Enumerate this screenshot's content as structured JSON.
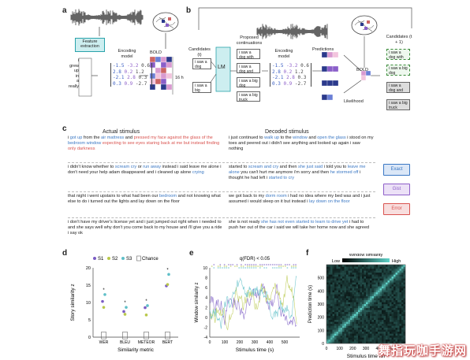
{
  "panels": {
    "a": "a",
    "b": "b",
    "c": "c",
    "d": "d",
    "e": "e",
    "f": "f"
  },
  "panel_a": {
    "feature_box": "Feature extraction",
    "words": [
      "i",
      "grew",
      "up",
      "in",
      "a",
      "really"
    ],
    "encoding_label": "Encoding model",
    "bold_label": "BOLD",
    "hours": "16 h",
    "matrix_rows": [
      [
        "-1.5",
        "-3.2",
        "0.6"
      ],
      [
        "2.8",
        "0.2",
        "1.2"
      ],
      [
        "-2.1",
        "2.8",
        "0.3"
      ],
      [
        "0.3",
        "0.9",
        "-2.7"
      ]
    ]
  },
  "panel_b": {
    "candidates_t": "Candidates (t)",
    "cand_t": [
      "i saw a dog",
      "i saw a big"
    ],
    "lm": "LM",
    "proposed": "Proposed continuations",
    "proposed_items": [
      "i saw a dog with",
      "i saw a dog and",
      "i saw a big dog",
      "i saw a big truck"
    ],
    "encoding_label": "Encoding model",
    "predictions": "Predictions",
    "likelihood": "Likelihood",
    "bold": "BOLD",
    "candidates_t1": "Candidates (t + 1)",
    "cand_t1": [
      "i saw a dog with",
      "i saw a big dog",
      "i saw a dog and",
      "i saw a big truck"
    ],
    "matrix_rows": [
      [
        "-1.5",
        "-3.2",
        "0.6"
      ],
      [
        "2.8",
        "0.2",
        "1.2"
      ],
      [
        "-2.1",
        "2.8",
        "0.3"
      ],
      [
        "0.3",
        "0.9",
        "-2.7"
      ]
    ]
  },
  "panel_c": {
    "actual_header": "Actual stimulus",
    "decoded_header": "Decoded stimulus",
    "rows": [
      {
        "actual": [
          [
            "n",
            "i "
          ],
          [
            "x",
            "got up"
          ],
          [
            "n",
            " from the "
          ],
          [
            "x",
            "air mattress"
          ],
          [
            "n",
            " and "
          ],
          [
            "e",
            "pressed my face against the glass of the "
          ],
          [
            "x",
            "bedroom window"
          ],
          [
            "e",
            " expecting to see eyes staring back at me but instead finding only darkness"
          ]
        ],
        "decoded": [
          [
            "n",
            "i just continued to "
          ],
          [
            "x",
            "walk up"
          ],
          [
            "n",
            " to the "
          ],
          [
            "x",
            "window"
          ],
          [
            "n",
            " and "
          ],
          [
            "x",
            "open the"
          ],
          [
            "n",
            " "
          ],
          [
            "x",
            "glass"
          ],
          [
            "n",
            " i stood on my toes and peered out i didn't see anything and looked up again i saw nothing"
          ]
        ]
      },
      {
        "actual": [
          [
            "n",
            "i didn't know whether to "
          ],
          [
            "x",
            "scream cry"
          ],
          [
            "n",
            " or "
          ],
          [
            "x",
            "run away"
          ],
          [
            "n",
            " instead i said leave me alone i don't need your help adam disappeared and i cleaned up alone "
          ],
          [
            "x",
            "crying"
          ]
        ],
        "decoded": [
          [
            "n",
            "started to "
          ],
          [
            "x",
            "scream and cry"
          ],
          [
            "n",
            " and then "
          ],
          [
            "x",
            "she just said"
          ],
          [
            "n",
            " i told you to "
          ],
          [
            "x",
            "leave me alone"
          ],
          [
            "n",
            " you can't hurt me anymore i'm sorry and then "
          ],
          [
            "x",
            "he stormed off"
          ],
          [
            "n",
            " i thought he had left i "
          ],
          [
            "x",
            "started to cry"
          ]
        ]
      },
      {
        "actual": [
          [
            "n",
            "that night i went upstairs to what had been our "
          ],
          [
            "x",
            "bedroom"
          ],
          [
            "n",
            " and not knowing what else to do i turned out the lights and lay down on the floor"
          ]
        ],
        "decoded": [
          [
            "n",
            "we got back to my "
          ],
          [
            "x",
            "dorm room"
          ],
          [
            "n",
            " i had no idea where my bed was and i just assumed i would sleep on it but instead i "
          ],
          [
            "x",
            "lay down on the floor"
          ]
        ]
      },
      {
        "actual": [
          [
            "n",
            "i don't have my driver's license yet and i just jumped out right when i needed to and she says well why don't you come back to my house and i'll give you a ride i say ok"
          ]
        ],
        "decoded": [
          [
            "n",
            "she is not ready "
          ],
          [
            "x",
            "she has not even started to learn to drive yet"
          ],
          [
            "n",
            " i had to push her out of the car i said we will take her home now and she agreed"
          ]
        ]
      }
    ],
    "legend": [
      "Exact",
      "Gist",
      "Error"
    ]
  },
  "chart_data": [
    {
      "type": "scatter",
      "panel": "d",
      "xlabel": "Similarity metric",
      "ylabel": "Story similarity z",
      "categories": [
        "WER",
        "BLEU",
        "METEOR",
        "BERT"
      ],
      "ylim": [
        0,
        20
      ],
      "yticks": [
        0,
        5,
        10,
        15,
        20
      ],
      "legend": [
        "S1",
        "S2",
        "S3",
        "Chance"
      ],
      "series": [
        {
          "name": "S1",
          "values": [
            10.3,
            7.4,
            8.5,
            14.8
          ]
        },
        {
          "name": "S2",
          "values": [
            8.6,
            6.6,
            6.4,
            15.2
          ]
        },
        {
          "name": "S3",
          "values": [
            12.3,
            8.6,
            9.1,
            18.1
          ]
        }
      ]
    },
    {
      "type": "line",
      "panel": "e",
      "title": "q(FDR) < 0.05",
      "xlabel": "Stimulus time (s)",
      "ylabel": "Window similarity z",
      "xlim": [
        0,
        600
      ],
      "xticks": [
        0,
        100,
        200,
        300,
        400,
        500
      ],
      "ylim": [
        -4,
        10
      ],
      "yticks": [
        -4,
        -2,
        0,
        2,
        4,
        6,
        8,
        10
      ]
    },
    {
      "type": "heatmap",
      "panel": "f",
      "title": "Window similarity",
      "legend": [
        "Low",
        "High"
      ],
      "xlabel": "Stimulus time (s)",
      "ylabel": "Prediction time (s)",
      "xticks": [
        0,
        100,
        200,
        300,
        400,
        500
      ],
      "yticks": [
        0,
        100,
        200,
        300,
        400,
        500
      ]
    }
  ],
  "colors": {
    "s1": "#7b5cc4",
    "s2": "#b9c84a",
    "s3": "#5fbfc8",
    "exact": "#3b78c4",
    "gist": "#8e5fc9",
    "error": "#d9534f",
    "teal": "#2aa3ab"
  },
  "watermark": "舞指玩咖手游网"
}
